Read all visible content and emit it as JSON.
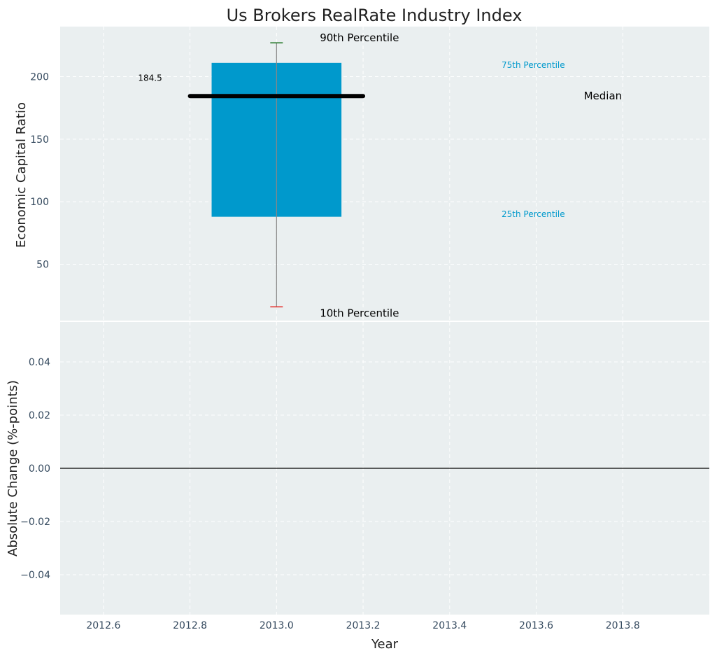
{
  "chart_data": [
    {
      "type": "bar",
      "title": "Us Brokers RealRate Industry Index",
      "ylabel": "Economic Capital Ratio",
      "xlim": [
        2012.5,
        2014.0
      ],
      "ylim": [
        5,
        240
      ],
      "yticks": [
        50,
        100,
        150,
        200
      ],
      "grid": true,
      "box": {
        "x": 2013.0,
        "p10": 16,
        "p25": 88,
        "median": 184.5,
        "p75": 211,
        "p90": 227,
        "color": "#0099cc"
      },
      "median_label": "184.5",
      "annotations": {
        "p90": "90th Percentile",
        "p75": "75th Percentile",
        "median": "Median",
        "p25": "25th Percentile",
        "p10": "10th Percentile"
      },
      "colors": {
        "p90_tick": "#2e7d32",
        "p10_tick": "#e53935",
        "median_line": "#000000",
        "annotation_blue": "#0099cc"
      }
    },
    {
      "type": "line",
      "xlabel": "Year",
      "ylabel": "Absolute Change (%-points)",
      "xlim": [
        2012.5,
        2014.0
      ],
      "ylim": [
        -0.055,
        0.055
      ],
      "xticks": [
        2012.6,
        2012.8,
        2013.0,
        2013.2,
        2013.4,
        2013.6,
        2013.8
      ],
      "xtick_labels": [
        "2012.6",
        "2012.8",
        "2013.0",
        "2013.2",
        "2013.4",
        "2013.6",
        "2013.8"
      ],
      "yticks": [
        -0.04,
        -0.02,
        0.0,
        0.02,
        0.04
      ],
      "ytick_labels": [
        "−0.04",
        "−0.02",
        "0.00",
        "0.02",
        "0.04"
      ],
      "reference_line": 0.0,
      "grid": true
    }
  ],
  "style": {
    "axes_bg": "#eaeff0",
    "grid_color": "#ffffff",
    "tick_text_color": "#34495e",
    "label_color": "#222222"
  }
}
